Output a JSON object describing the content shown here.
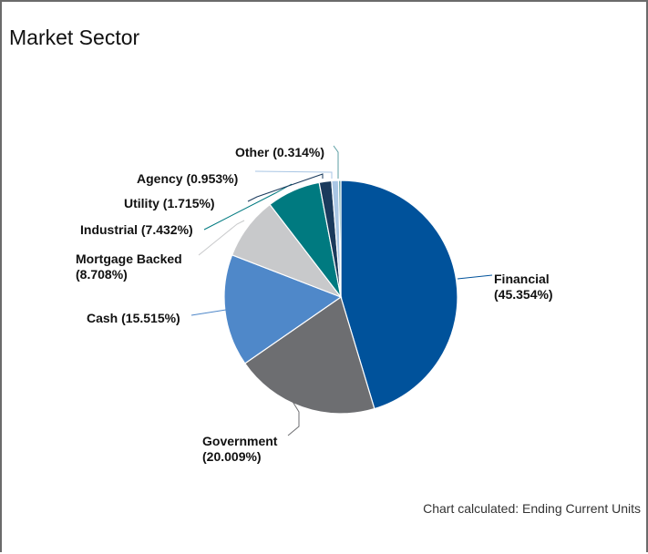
{
  "chart_data": {
    "type": "pie",
    "title": "Market Sector",
    "footnote": "Chart calculated: Ending Current Units",
    "slices": [
      {
        "name": "Financial",
        "value": 45.354,
        "label": "Financial",
        "pct": "(45.354%)",
        "color": "#00529b"
      },
      {
        "name": "Government",
        "value": 20.009,
        "label": "Government",
        "pct": "(20.009%)",
        "color": "#6d6e71"
      },
      {
        "name": "Cash",
        "value": 15.515,
        "label": "Cash (15.515%)",
        "pct": "",
        "color": "#4f88c9"
      },
      {
        "name": "Mortgage Backed",
        "value": 8.708,
        "label": "Mortgage Backed",
        "pct": "(8.708%)",
        "color": "#c8c9cb"
      },
      {
        "name": "Industrial",
        "value": 7.432,
        "label": "Industrial (7.432%)",
        "pct": "",
        "color": "#007a80"
      },
      {
        "name": "Utility",
        "value": 1.715,
        "label": "Utility (1.715%)",
        "pct": "",
        "color": "#1a3a5c"
      },
      {
        "name": "Agency",
        "value": 0.953,
        "label": "Agency (0.953%)",
        "pct": "",
        "color": "#a9c6e4"
      },
      {
        "name": "Other",
        "value": 0.314,
        "label": "Other (0.314%)",
        "pct": "",
        "color": "#5b9ea3"
      }
    ]
  }
}
